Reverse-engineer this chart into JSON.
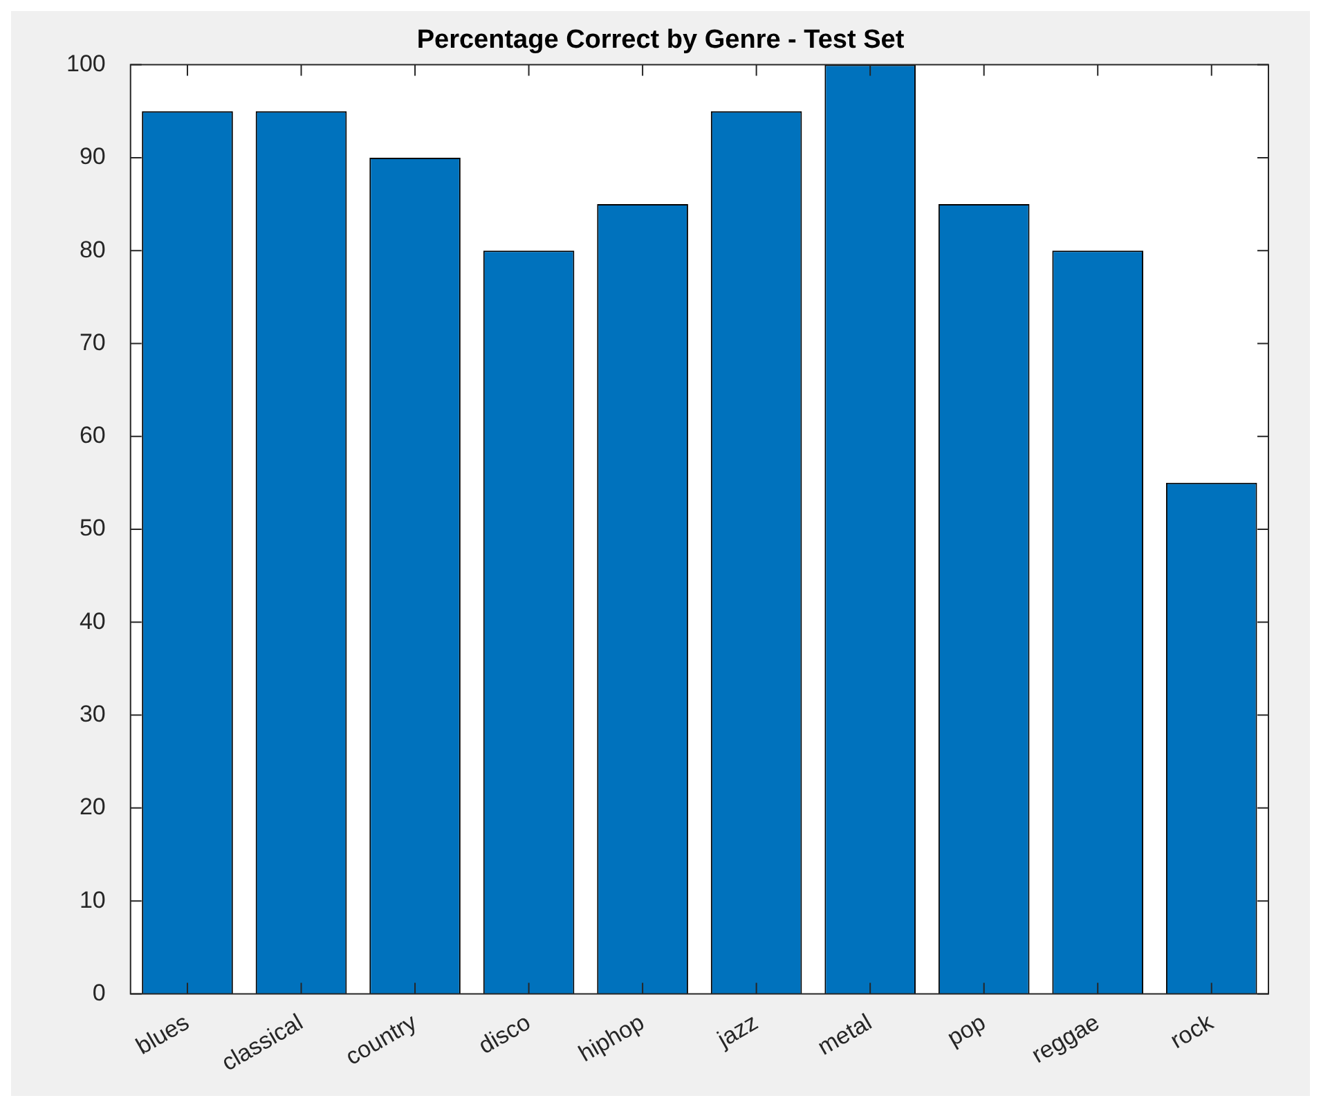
{
  "chart_data": {
    "type": "bar",
    "title": "Percentage Correct by Genre - Test Set",
    "categories": [
      "blues",
      "classical",
      "country",
      "disco",
      "hiphop",
      "jazz",
      "metal",
      "pop",
      "reggae",
      "rock"
    ],
    "values": [
      95,
      95,
      90,
      80,
      85,
      95,
      100,
      85,
      80,
      55
    ],
    "color": "#0072bd",
    "ylim": [
      0,
      100
    ],
    "yticks": [
      0,
      10,
      20,
      30,
      40,
      50,
      60,
      70,
      80,
      90,
      100
    ]
  }
}
